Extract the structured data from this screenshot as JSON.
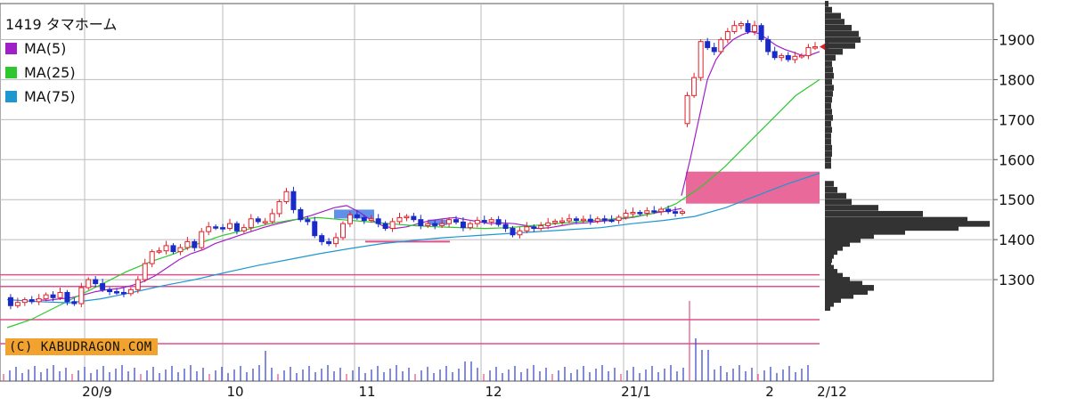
{
  "chart_data": {
    "type": "candlestick",
    "title": "1419 タマホーム",
    "legend": [
      {
        "name": "MA(5)",
        "color": "#a020c8"
      },
      {
        "name": "MA(25)",
        "color": "#2ec82e"
      },
      {
        "name": "MA(75)",
        "color": "#1e96d2"
      }
    ],
    "copyright": "(C) KABUDRAGON.COM",
    "x_ticks": [
      "20/9",
      "10",
      "11",
      "12",
      "21/1",
      "2",
      "2/12"
    ],
    "y_ticks": [
      1300,
      1400,
      1500,
      1600,
      1700,
      1800,
      1900
    ],
    "y_range": [
      1180,
      1990
    ],
    "last_value": 1882,
    "support_lines": [
      1312,
      1283,
      1200,
      1140
    ],
    "price_path": [
      [
        1255,
        1235,
        1243,
        1250,
        1245,
        1252,
        1262,
        1255,
        1268,
        1245,
        1240,
        1280,
        1300,
        1290,
        1275,
        1270,
        1268,
        1265,
        1275,
        1300,
        1340,
        1370,
        1372,
        1385,
        1370,
        1380,
        1395,
        1380,
        1420,
        1432,
        1430,
        1428,
        1440,
        1422,
        1430,
        1452,
        1445,
        1445,
        1465,
        1495,
        1520,
        1475,
        1450,
        1445,
        1410,
        1395,
        1390,
        1405,
        1440,
        1462,
        1455,
        1448,
        1452,
        1440,
        1428,
        1445,
        1455,
        1458,
        1450,
        1435,
        1440,
        1435,
        1440,
        1450,
        1444,
        1430,
        1440,
        1448,
        1444,
        1450,
        1438,
        1428,
        1412,
        1422,
        1432,
        1428,
        1435,
        1442,
        1446,
        1447,
        1452,
        1448,
        1451,
        1446,
        1452,
        1449,
        1448,
        1456,
        1466,
        1468,
        1466,
        1472,
        1470,
        1476,
        1470,
        1466,
        1470
      ],
      [
        1690,
        1760,
        1805,
        1895,
        1880,
        1870,
        1900,
        1920,
        1935,
        1940,
        1920,
        1935,
        1900,
        1870,
        1855,
        1860,
        1850,
        1858,
        1860,
        1880,
        1882
      ]
    ],
    "ma5": [
      [
        1250,
        1248,
        1252,
        1255,
        1262,
        1270,
        1275,
        1278,
        1285,
        1295,
        1310,
        1330,
        1350,
        1365,
        1375,
        1390,
        1400,
        1410,
        1420,
        1430,
        1438,
        1445,
        1452,
        1460,
        1470,
        1480,
        1485,
        1470,
        1450,
        1435,
        1428,
        1432,
        1440,
        1448,
        1452,
        1455,
        1450,
        1445,
        1440,
        1442,
        1440,
        1435,
        1428,
        1430,
        1435,
        1440,
        1442,
        1445,
        1448,
        1452,
        1456,
        1462,
        1468,
        1472,
        1478
      ],
      [
        1510,
        1600,
        1700,
        1800,
        1850,
        1880,
        1900,
        1912,
        1920,
        1915,
        1900,
        1885,
        1875,
        1868,
        1860,
        1862,
        1870
      ]
    ],
    "ma25": [
      1180,
      1200,
      1230,
      1260,
      1290,
      1320,
      1345,
      1365,
      1390,
      1410,
      1425,
      1440,
      1450,
      1455,
      1450,
      1445,
      1440,
      1435,
      1432,
      1430,
      1428,
      1430,
      1435,
      1440,
      1445,
      1450,
      1455,
      1465,
      1490,
      1530,
      1580,
      1640,
      1700,
      1760,
      1800
    ],
    "ma75": [
      1250,
      1245,
      1242,
      1252,
      1268,
      1285,
      1300,
      1318,
      1335,
      1350,
      1365,
      1378,
      1390,
      1398,
      1405,
      1410,
      1415,
      1420,
      1425,
      1430,
      1440,
      1448,
      1458,
      1480,
      1510,
      1540,
      1566
    ],
    "volume_profile": [
      {
        "price": 1900,
        "volume": 40
      },
      {
        "price": 1800,
        "volume": 10
      },
      {
        "price": 1445,
        "volume": 185
      },
      {
        "price": 1410,
        "volume": 55
      },
      {
        "price": 1275,
        "volume": 55
      }
    ],
    "marked_zones": [
      {
        "from": 1490,
        "to": 1570,
        "color": "#e8699a"
      }
    ]
  }
}
